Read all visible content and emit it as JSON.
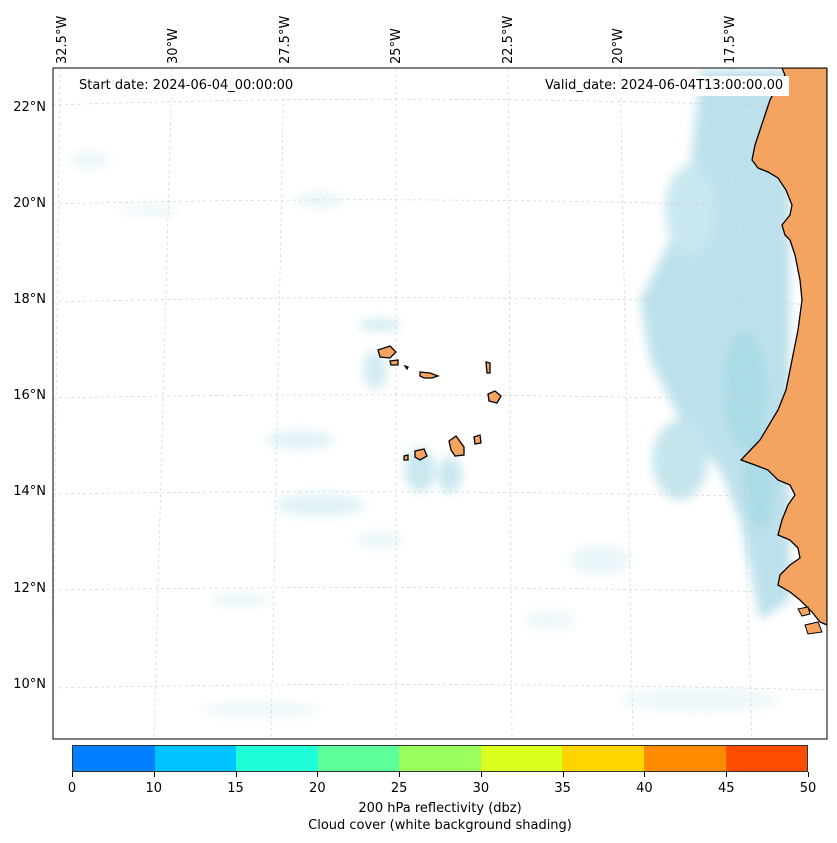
{
  "map": {
    "start_date": "Start date: 2024-06-04_00:00:00",
    "valid_date": "Valid_date: 2024-06-04T13:00:00.00",
    "lon_labels": [
      "32.5°W",
      "30°W",
      "27.5°W",
      "25°W",
      "22.5°W",
      "20°W",
      "17.5°W"
    ],
    "lat_labels": [
      "22°N",
      "20°N",
      "18°N",
      "16°N",
      "14°N",
      "12°N",
      "10°N"
    ],
    "land_color": "#f4a460",
    "cloud_color": "#a8d8e6",
    "ocean_color": "#ffffff"
  },
  "colorbar": {
    "ticks": [
      "0",
      "10",
      "15",
      "20",
      "25",
      "30",
      "35",
      "40",
      "45",
      "50"
    ],
    "colors": [
      "#007fff",
      "#00c3ff",
      "#1effd8",
      "#5cff9a",
      "#9aff5c",
      "#d8ff1e",
      "#ffd500",
      "#ff8c00",
      "#ff4d00"
    ],
    "caption_line1": "200 hPa reflectivity (dbz)",
    "caption_line2": "Cloud cover (white background shading)"
  }
}
